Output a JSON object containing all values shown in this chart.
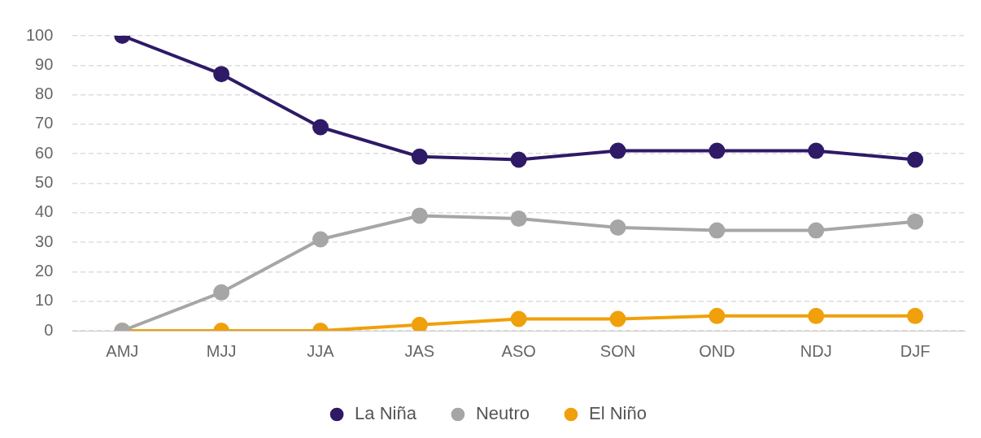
{
  "chart_data": {
    "type": "line",
    "categories": [
      "AMJ",
      "MJJ",
      "JJA",
      "JAS",
      "ASO",
      "SON",
      "OND",
      "NDJ",
      "DJF"
    ],
    "series": [
      {
        "name": "La Niña",
        "color": "#2e1a66",
        "values": [
          100,
          87,
          69,
          59,
          58,
          61,
          61,
          61,
          58
        ]
      },
      {
        "name": "Neutro",
        "color": "#a6a6a6",
        "values": [
          0,
          13,
          31,
          39,
          38,
          35,
          34,
          34,
          37
        ]
      },
      {
        "name": "El Niño",
        "color": "#f0a00a",
        "values": [
          0,
          0,
          0,
          2,
          4,
          4,
          5,
          5,
          5
        ]
      }
    ],
    "ylim": [
      0,
      100
    ],
    "yticks": [
      0,
      10,
      20,
      30,
      40,
      50,
      60,
      70,
      80,
      90,
      100
    ],
    "grid": "y",
    "legend": "bottom",
    "marker": "circle",
    "line_style": "solid"
  }
}
